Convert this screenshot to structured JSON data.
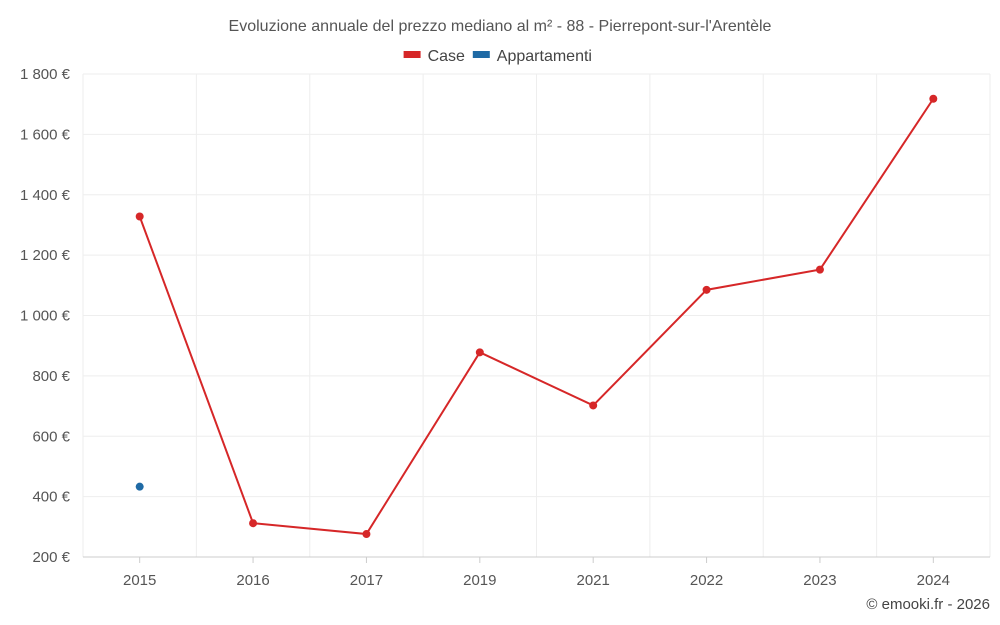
{
  "chart_data": {
    "type": "line",
    "title": "Evoluzione annuale del prezzo mediano al m² - 88 - Pierrepont-sur-l'Arentèle",
    "categories": [
      "2015",
      "2016",
      "2017",
      "2019",
      "2021",
      "2022",
      "2023",
      "2024"
    ],
    "series": [
      {
        "name": "Case",
        "color": "#d62728",
        "values": [
          1328,
          312,
          276,
          878,
          702,
          1085,
          1152,
          1718
        ]
      },
      {
        "name": "Appartamenti",
        "color": "#1f6aa5",
        "values": [
          433,
          null,
          null,
          null,
          null,
          null,
          null,
          null
        ]
      }
    ],
    "ylim": [
      200,
      1800
    ],
    "y_ticks": [
      200,
      400,
      600,
      800,
      1000,
      1200,
      1400,
      1600,
      1800
    ],
    "y_tick_labels": [
      "200 €",
      "400 €",
      "600 €",
      "800 €",
      "1 000 €",
      "1 200 €",
      "1 400 €",
      "1 600 €",
      "1 800 €"
    ],
    "legend_position": "top-center",
    "grid": true
  },
  "credit": "© emooki.fr - 2026"
}
